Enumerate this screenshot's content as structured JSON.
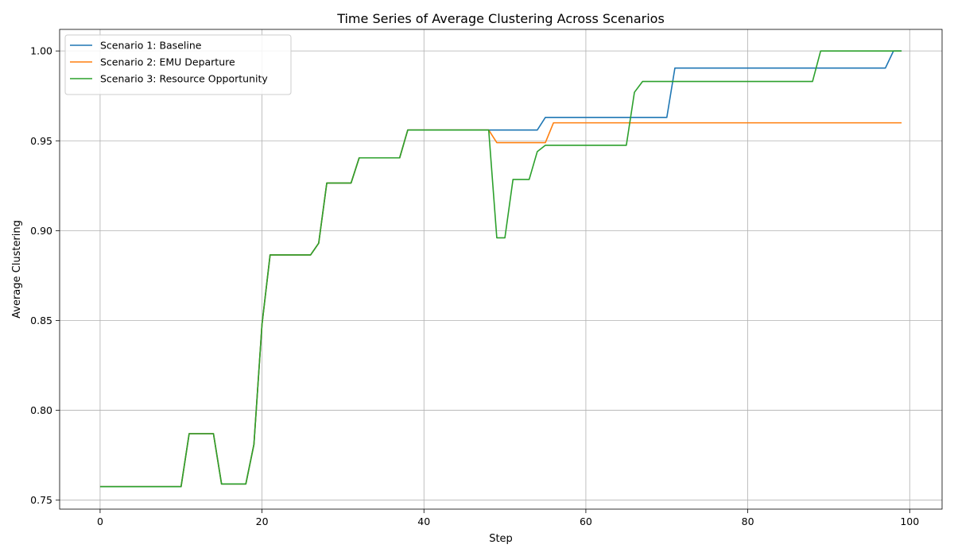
{
  "chart_data": {
    "type": "line",
    "title": "Time Series of Average Clustering Across Scenarios",
    "xlabel": "Step",
    "ylabel": "Average Clustering",
    "xlim": [
      -5,
      104
    ],
    "ylim": [
      0.745,
      1.012
    ],
    "xticks": [
      0,
      20,
      40,
      60,
      80,
      100
    ],
    "yticks": [
      0.75,
      0.8,
      0.85,
      0.9,
      0.95,
      1.0
    ],
    "xtick_labels": [
      "0",
      "20",
      "40",
      "60",
      "80",
      "100"
    ],
    "ytick_labels": [
      "0.75",
      "0.80",
      "0.85",
      "0.90",
      "0.95",
      "1.00"
    ],
    "grid": true,
    "legend_position": "top-left",
    "series": [
      {
        "name": "Scenario 1: Baseline",
        "color": "#1f77b4",
        "points": [
          [
            0,
            0.7575
          ],
          [
            10,
            0.7575
          ],
          [
            11,
            0.787
          ],
          [
            14,
            0.787
          ],
          [
            15,
            0.759
          ],
          [
            18,
            0.759
          ],
          [
            19,
            0.781
          ],
          [
            20,
            0.848
          ],
          [
            21,
            0.8865
          ],
          [
            26,
            0.8865
          ],
          [
            27,
            0.893
          ],
          [
            28,
            0.9265
          ],
          [
            31,
            0.9265
          ],
          [
            32,
            0.9405
          ],
          [
            37,
            0.9405
          ],
          [
            38,
            0.956
          ],
          [
            54,
            0.956
          ],
          [
            55,
            0.963
          ],
          [
            70,
            0.963
          ],
          [
            71,
            0.9905
          ],
          [
            97,
            0.9905
          ],
          [
            98,
            1.0
          ],
          [
            99,
            1.0
          ]
        ]
      },
      {
        "name": "Scenario 2: EMU Departure",
        "color": "#ff7f0e",
        "points": [
          [
            0,
            0.7575
          ],
          [
            10,
            0.7575
          ],
          [
            11,
            0.787
          ],
          [
            14,
            0.787
          ],
          [
            15,
            0.759
          ],
          [
            18,
            0.759
          ],
          [
            19,
            0.781
          ],
          [
            20,
            0.848
          ],
          [
            21,
            0.8865
          ],
          [
            26,
            0.8865
          ],
          [
            27,
            0.893
          ],
          [
            28,
            0.9265
          ],
          [
            31,
            0.9265
          ],
          [
            32,
            0.9405
          ],
          [
            37,
            0.9405
          ],
          [
            38,
            0.956
          ],
          [
            48,
            0.956
          ],
          [
            49,
            0.949
          ],
          [
            55,
            0.949
          ],
          [
            56,
            0.96
          ],
          [
            99,
            0.96
          ]
        ]
      },
      {
        "name": "Scenario 3: Resource Opportunity",
        "color": "#2ca02c",
        "points": [
          [
            0,
            0.7575
          ],
          [
            10,
            0.7575
          ],
          [
            11,
            0.787
          ],
          [
            14,
            0.787
          ],
          [
            15,
            0.759
          ],
          [
            18,
            0.759
          ],
          [
            19,
            0.781
          ],
          [
            20,
            0.848
          ],
          [
            21,
            0.8865
          ],
          [
            26,
            0.8865
          ],
          [
            27,
            0.893
          ],
          [
            28,
            0.9265
          ],
          [
            31,
            0.9265
          ],
          [
            32,
            0.9405
          ],
          [
            37,
            0.9405
          ],
          [
            38,
            0.956
          ],
          [
            48,
            0.956
          ],
          [
            49,
            0.896
          ],
          [
            50,
            0.896
          ],
          [
            51,
            0.9285
          ],
          [
            53,
            0.9285
          ],
          [
            54,
            0.944
          ],
          [
            55,
            0.9475
          ],
          [
            65,
            0.9475
          ],
          [
            66,
            0.977
          ],
          [
            67,
            0.983
          ],
          [
            88,
            0.983
          ],
          [
            89,
            1.0
          ],
          [
            99,
            1.0
          ]
        ]
      }
    ]
  }
}
